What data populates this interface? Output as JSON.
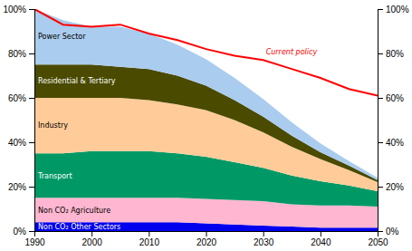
{
  "chart_data": {
    "type": "area",
    "stacked": true,
    "grid": false,
    "x": [
      1990,
      1995,
      2000,
      2005,
      2010,
      2015,
      2020,
      2025,
      2030,
      2035,
      2040,
      2045,
      2050
    ],
    "series": [
      {
        "name": "Non CO₂ Other Sectors",
        "color": "#0000EE",
        "values": [
          4,
          4,
          4,
          4,
          4,
          4,
          3.5,
          3,
          2.5,
          2,
          1.5,
          1.5,
          1.5
        ]
      },
      {
        "name": "Non CO₂ Agriculture",
        "color": "#FFB6D0",
        "values": [
          11,
          11,
          11,
          11,
          11,
          11,
          11,
          11,
          11,
          10,
          10,
          10,
          9.5
        ]
      },
      {
        "name": "Transport",
        "color": "#009966",
        "values": [
          20,
          20,
          21,
          21,
          21,
          20,
          19,
          17,
          15,
          13,
          11,
          9,
          7
        ]
      },
      {
        "name": "Industry",
        "color": "#FFCC99",
        "values": [
          25,
          25,
          24,
          24,
          23,
          22,
          21,
          19,
          16,
          13,
          10,
          7,
          4
        ]
      },
      {
        "name": "Residential & Tertiary",
        "color": "#4A4A00",
        "values": [
          15,
          15,
          15,
          14,
          14,
          13,
          11,
          9,
          7,
          5,
          3,
          2,
          1
        ]
      },
      {
        "name": "Power Sector",
        "color": "#AACCEE",
        "values": [
          25,
          20,
          17,
          18,
          16,
          14,
          12,
          10,
          8,
          6,
          4,
          2,
          1
        ]
      },
      {
        "name": "Current policy",
        "type": "line",
        "color": "red",
        "values": [
          100,
          93,
          92,
          93,
          89,
          86,
          82,
          79,
          77,
          73,
          69,
          64,
          61
        ]
      }
    ],
    "xlim": [
      1990,
      2050
    ],
    "xticks": [
      1990,
      2000,
      2010,
      2020,
      2030,
      2040,
      2050
    ],
    "ylim": [
      0,
      100
    ],
    "yticks": [
      {
        "value": 0,
        "label": "0%"
      },
      {
        "value": 20,
        "label": "20%"
      },
      {
        "value": 40,
        "label": "40%"
      },
      {
        "value": 60,
        "label": "60%"
      },
      {
        "value": 80,
        "label": "80%"
      },
      {
        "value": 100,
        "label": "100%"
      }
    ],
    "y2lim": [
      0,
      100
    ],
    "y2ticks": [
      {
        "value": 0,
        "label": "0%"
      },
      {
        "value": 20,
        "label": "20%"
      },
      {
        "value": 40,
        "label": "40%"
      },
      {
        "value": 60,
        "label": "60%"
      },
      {
        "value": 80,
        "label": "80%"
      },
      {
        "value": 100,
        "label": "100%"
      }
    ]
  }
}
